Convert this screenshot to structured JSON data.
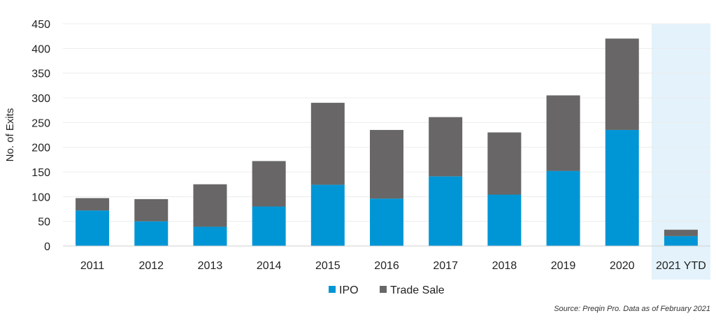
{
  "chart_data": {
    "type": "bar",
    "stacked": true,
    "categories": [
      "2011",
      "2012",
      "2013",
      "2014",
      "2015",
      "2016",
      "2017",
      "2018",
      "2019",
      "2020",
      "2021 YTD"
    ],
    "series": [
      {
        "name": "IPO",
        "color": "#0096d6",
        "values": [
          72,
          50,
          39,
          80,
          124,
          96,
          141,
          104,
          152,
          235,
          20
        ]
      },
      {
        "name": "Trade Sale",
        "color": "#686666",
        "values": [
          25,
          45,
          86,
          92,
          166,
          139,
          120,
          126,
          153,
          185,
          13
        ]
      }
    ],
    "ylabel": "No. of Exits",
    "xlabel": "",
    "ylim": [
      0,
      450
    ],
    "yticks": [
      0,
      50,
      100,
      150,
      200,
      250,
      300,
      350,
      400,
      450
    ],
    "grid": true,
    "highlight_category": "2021 YTD",
    "highlight_color": "#e3f2fb",
    "legend_position": "bottom-center",
    "source": "Source: Preqin Pro. Data as of February 2021"
  }
}
